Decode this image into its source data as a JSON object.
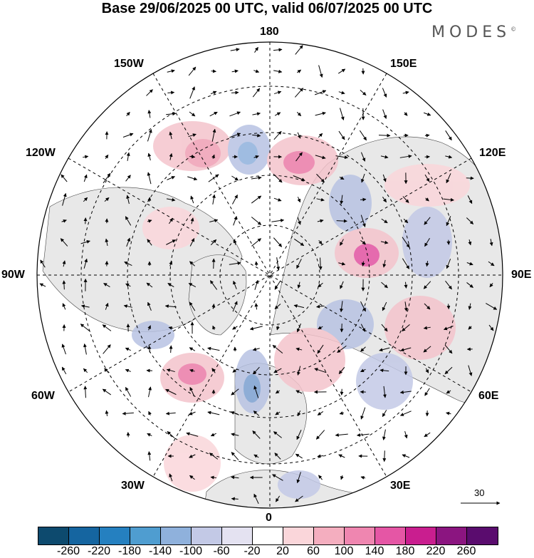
{
  "title": "Base 29/06/2025 00 UTC, valid 06/07/2025 00 UTC",
  "brand": {
    "name": "MODES",
    "mark": "©"
  },
  "longitude_labels": {
    "lon_180": "180",
    "lon_150e": "150E",
    "lon_120e": "120E",
    "lon_90e": "90E",
    "lon_60e": "60E",
    "lon_30e": "30E",
    "lon_0": "0",
    "lon_30w": "30W",
    "lon_60w": "60W",
    "lon_90w": "90W",
    "lon_120w": "120W",
    "lon_150w": "150W"
  },
  "vector_scale": {
    "label": "30"
  },
  "colorbar": {
    "colors": [
      "#0d4a6e",
      "#1565a0",
      "#2580c0",
      "#4f9dd0",
      "#8fb1dc",
      "#c3c9e6",
      "#e4e2f1",
      "#ffffff",
      "#fad6da",
      "#f4aebf",
      "#ef86b0",
      "#e556a5",
      "#c91e8f",
      "#8b1580",
      "#5a0c6e"
    ],
    "tick_labels": [
      "-260",
      "-220",
      "-180",
      "-140",
      "-100",
      "-60",
      "-20",
      "20",
      "60",
      "100",
      "140",
      "180",
      "220",
      "260"
    ]
  },
  "map": {
    "projection": "north polar stereographic",
    "land_color": "#e8e8e8",
    "ocean_color": "#ffffff",
    "positive_color": "#f0b3c0",
    "negative_color": "#b8c3e3"
  }
}
